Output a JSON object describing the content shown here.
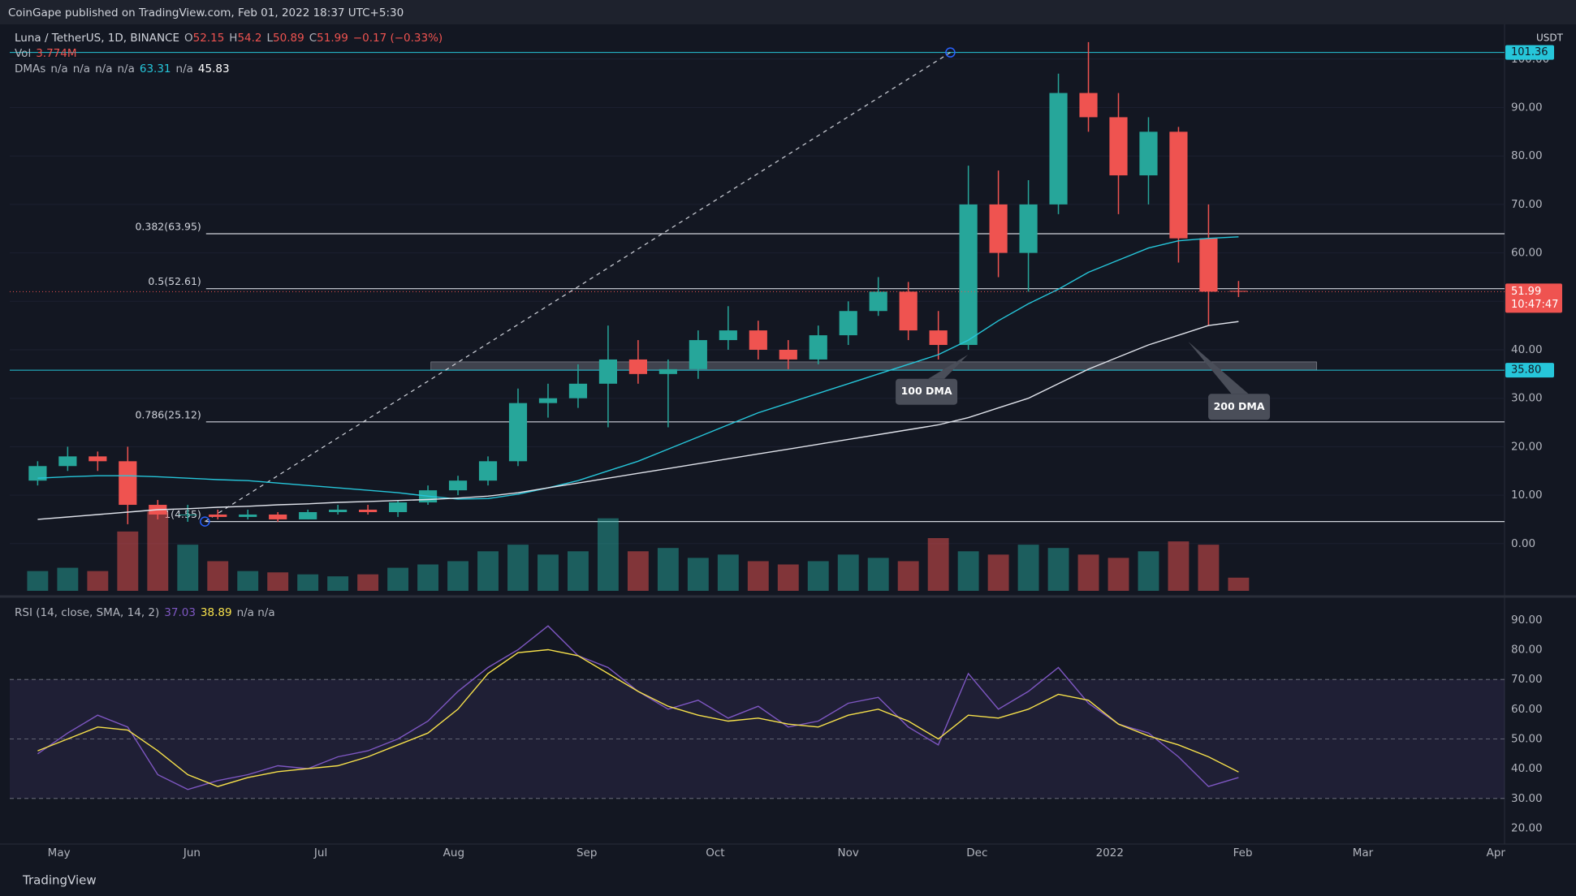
{
  "header": {
    "published": "CoinGape published on TradingView.com, Feb 01, 2022 18:37 UTC+5:30",
    "brand": "TradingView"
  },
  "chart_data": [
    {
      "type": "candlestick",
      "symbol": "Luna / TetherUS, 1D, BINANCE",
      "ohlc_labels": [
        "O",
        "H",
        "L",
        "C"
      ],
      "change_label": "−0.17 (−0.33%)",
      "volume_label": "Vol",
      "volume_value": "3.774M",
      "dma_label": "DMAs",
      "dma_values": [
        "n/a",
        "n/a",
        "n/a",
        "n/a",
        63.31,
        "n/a",
        45.83
      ],
      "currency": "USDT",
      "up_color": "#26a69a",
      "down_color": "#ef5350",
      "categories": [
        null,
        null,
        null,
        null,
        null,
        null,
        null,
        null,
        null,
        null,
        null,
        null,
        null,
        null,
        null,
        null,
        null,
        null,
        null,
        null,
        null,
        null,
        null,
        null,
        null,
        null,
        null,
        null,
        null,
        null,
        null,
        null,
        null,
        null,
        null,
        null,
        null,
        null,
        null,
        null,
        null
      ],
      "open": [
        13,
        16,
        18,
        17,
        8,
        6,
        6,
        5.5,
        6,
        5,
        6.5,
        7,
        6.5,
        8.5,
        11,
        13,
        17,
        29,
        30,
        33,
        38,
        35,
        36,
        42,
        44,
        40,
        38,
        43,
        48,
        52,
        44,
        41,
        70,
        60,
        70,
        93,
        88,
        76,
        85,
        63,
        52.15
      ],
      "high": [
        17,
        20,
        19,
        20,
        9,
        8,
        7,
        7,
        6.5,
        7,
        8,
        8,
        9,
        12,
        14,
        18,
        32,
        33,
        37,
        45,
        42,
        38,
        44,
        49,
        46,
        42,
        45,
        50,
        55,
        54,
        48,
        78,
        77,
        75,
        97,
        103.5,
        93,
        88,
        86,
        70,
        54.2
      ],
      "low": [
        12,
        15,
        15,
        4,
        5,
        4.5,
        5,
        5,
        4.5,
        5,
        6,
        6,
        5.5,
        8,
        10,
        12,
        16,
        26,
        28,
        24,
        33,
        24,
        34,
        40,
        38,
        36,
        37,
        41,
        47,
        42,
        38,
        40,
        55,
        52,
        68,
        85,
        68,
        70,
        58,
        45,
        50.89
      ],
      "close": [
        16,
        18,
        17,
        8,
        6,
        6,
        5.5,
        6,
        5,
        6.5,
        7,
        6.5,
        8.5,
        11,
        13,
        17,
        29,
        30,
        33,
        38,
        35,
        36,
        42,
        44,
        40,
        38,
        43,
        48,
        52,
        44,
        41,
        70,
        60,
        70,
        93,
        88,
        76,
        85,
        63,
        52,
        51.99
      ],
      "volume": [
        30,
        35,
        30,
        90,
        120,
        70,
        45,
        30,
        28,
        25,
        22,
        25,
        35,
        40,
        45,
        60,
        70,
        55,
        60,
        110,
        60,
        65,
        50,
        55,
        45,
        40,
        45,
        55,
        50,
        45,
        80,
        60,
        55,
        70,
        65,
        55,
        50,
        60,
        75,
        70,
        20
      ],
      "volume_lim": [
        0,
        160
      ],
      "series": [
        {
          "name": "100 DMA",
          "color": "#26c6da",
          "values": [
            13.5,
            13.8,
            14,
            14,
            13.8,
            13.5,
            13.2,
            13,
            12.5,
            12,
            11.5,
            11,
            10.5,
            9.8,
            9.2,
            9.3,
            10.2,
            11.5,
            13,
            15,
            17,
            19.5,
            22,
            24.5,
            27,
            29,
            31,
            33,
            35,
            37,
            39,
            42,
            46,
            49.5,
            52.5,
            56,
            58.5,
            61,
            62.5,
            63,
            63.31
          ]
        },
        {
          "name": "200 DMA",
          "color": "#e0e3eb",
          "values": [
            5,
            5.5,
            6,
            6.5,
            7,
            7.2,
            7.5,
            7.7,
            8,
            8.2,
            8.5,
            8.7,
            8.9,
            9.1,
            9.4,
            9.8,
            10.5,
            11.5,
            12.5,
            13.5,
            14.5,
            15.5,
            16.5,
            17.5,
            18.5,
            19.5,
            20.5,
            21.5,
            22.5,
            23.5,
            24.5,
            26,
            28,
            30,
            33,
            36,
            38.5,
            41,
            43,
            45,
            45.83
          ]
        }
      ],
      "fib": [
        {
          "value": 63.95,
          "label": "0.382(63.95)"
        },
        {
          "value": 52.61,
          "label": "0.5(52.61)"
        },
        {
          "value": 25.12,
          "label": "0.786(25.12)"
        },
        {
          "value": 4.55,
          "label": "1(4.55)"
        }
      ],
      "hlines": [
        {
          "value": 101.36,
          "label": "101.36",
          "color": "#26c6da"
        },
        {
          "value": 35.8,
          "label": "35.80",
          "color": "#26c6da"
        }
      ],
      "last_price": {
        "value": 51.99,
        "countdown": "10:47:47",
        "color": "#ef5350"
      },
      "trend_line": {
        "from": [
          4.57,
          4.55
        ],
        "to": [
          29.4,
          101.36
        ]
      },
      "support_zone": {
        "x": [
          12.1,
          41.6
        ],
        "y": [
          35.8,
          37.5
        ]
      },
      "xlim": [
        -1.93,
        47.86
      ],
      "ylim": [
        -9.75,
        107
      ],
      "yticks": [
        {
          "value": 0,
          "label": "0.00"
        },
        {
          "value": 10,
          "label": "10.00"
        },
        {
          "value": 20,
          "label": "20.00"
        },
        {
          "value": 30,
          "label": "30.00"
        },
        {
          "value": 40,
          "label": "40.00"
        },
        {
          "value": 50,
          "label": "50.00"
        },
        {
          "value": 60,
          "label": "60.00"
        },
        {
          "value": 70,
          "label": "70.00"
        },
        {
          "value": 80,
          "label": "80.00"
        },
        {
          "value": 90,
          "label": "90.00"
        },
        {
          "value": 100,
          "label": "100.00"
        }
      ],
      "xticks": [
        {
          "value": -0.29,
          "label": "May"
        },
        {
          "value": 4.14,
          "label": "Jun"
        },
        {
          "value": 8.43,
          "label": "Jul"
        },
        {
          "value": 12.86,
          "label": "Aug"
        },
        {
          "value": 17.29,
          "label": "Sep"
        },
        {
          "value": 21.57,
          "label": "Oct"
        },
        {
          "value": 26,
          "label": "Nov"
        },
        {
          "value": 30.29,
          "label": "Dec"
        },
        {
          "value": 34.71,
          "label": "2022"
        },
        {
          "value": 39.14,
          "label": "Feb"
        },
        {
          "value": 43.14,
          "label": "Mar"
        },
        {
          "value": 47.57,
          "label": "Apr"
        }
      ]
    },
    {
      "type": "line",
      "title": "RSI (14, close, SMA, 14, 2)",
      "extra": "n/a n/a",
      "series": [
        {
          "name": "RSI",
          "color": "#7e57c2",
          "values": [
            45,
            52,
            58,
            54,
            38,
            33,
            36,
            38,
            41,
            40,
            44,
            46,
            50,
            56,
            66,
            74,
            80,
            88,
            78,
            74,
            66,
            60,
            63,
            57,
            61,
            54,
            56,
            62,
            64,
            54,
            48,
            72,
            60,
            66,
            74,
            62,
            55,
            52,
            44,
            34,
            37.03
          ]
        },
        {
          "name": "SMA",
          "color": "#f7e14b",
          "values": [
            46,
            50,
            54,
            53,
            46,
            38,
            34,
            37,
            39,
            40,
            41,
            44,
            48,
            52,
            60,
            72,
            79,
            80,
            78,
            72,
            66,
            61,
            58,
            56,
            57,
            55,
            54,
            58,
            60,
            56,
            50,
            58,
            57,
            60,
            65,
            63,
            55,
            51,
            48,
            44,
            38.89
          ]
        }
      ],
      "band": [
        30,
        70
      ],
      "midline": 50,
      "ylim": [
        16.3,
        95.7
      ],
      "yticks": [
        {
          "value": 20,
          "label": "20.00"
        },
        {
          "value": 30,
          "label": "30.00"
        },
        {
          "value": 40,
          "label": "40.00"
        },
        {
          "value": 50,
          "label": "50.00"
        },
        {
          "value": 60,
          "label": "60.00"
        },
        {
          "value": 70,
          "label": "70.00"
        },
        {
          "value": 80,
          "label": "80.00"
        },
        {
          "value": 90,
          "label": "90.00"
        }
      ]
    }
  ]
}
